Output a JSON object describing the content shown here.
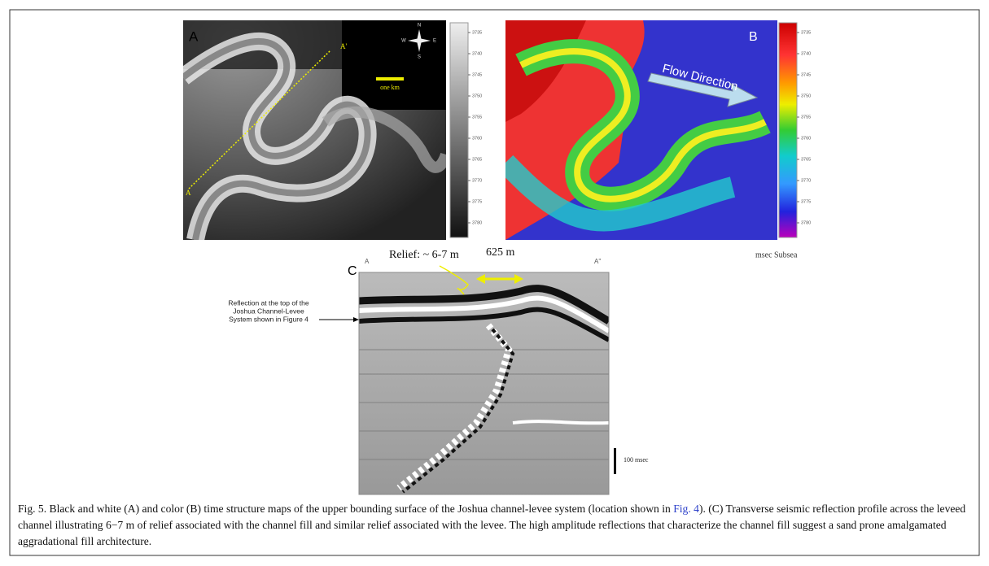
{
  "panel_a": {
    "label": "A",
    "section_start": "A",
    "section_end": "A'",
    "scale_bar": "one km",
    "compass": [
      "N",
      "E",
      "S",
      "W"
    ],
    "scale_ticks": [
      3735,
      3740,
      3745,
      3750,
      3755,
      3760,
      3765,
      3770,
      3775,
      3780
    ]
  },
  "panel_b": {
    "label": "B",
    "annotation": "Flow Direction",
    "scale_ticks": [
      3735,
      3740,
      3745,
      3750,
      3755,
      3760,
      3765,
      3770,
      3775,
      3780
    ],
    "scale_units": "msec Subsea"
  },
  "panel_c": {
    "label": "C",
    "section_start": "A",
    "section_end": "A''",
    "relief": "Relief: ~ 6-7 m",
    "width": "625 m",
    "reflection_note": [
      "Reflection at the top of the",
      "Joshua Channel-Levee",
      "System shown in Figure 4"
    ],
    "time_scale": "100 msec"
  },
  "caption": {
    "before": "Fig. 5. Black and white (A) and color (B) time structure maps of the upper bounding surface of the Joshua channel-levee system (location shown in ",
    "link": "Fig. 4",
    "after": "). (C) Transverse seismic reflection profile across the leveed channel illustrating 6−7 m of relief associated with the channel fill and similar relief associated with the levee. The high amplitude reflections that characterize the channel fill suggest a sand prone amalgamated aggradational fill architecture."
  }
}
